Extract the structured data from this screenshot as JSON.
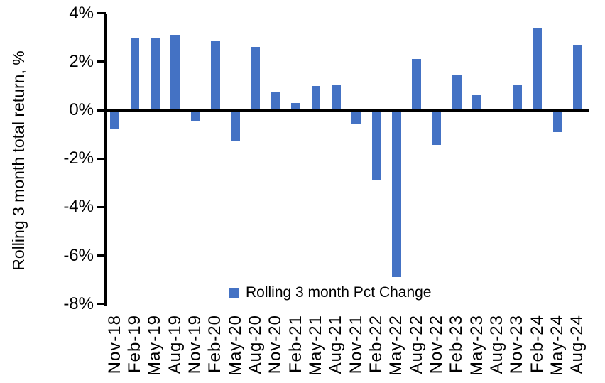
{
  "chart_data": {
    "type": "bar",
    "title": "",
    "xlabel": "",
    "ylabel": "Rolling 3 month total return, %",
    "legend_label": "Rolling 3 month Pct Change",
    "legend_position": "bottom-center",
    "grid": false,
    "bar_color": "#4472C4",
    "axis_color": "#000000",
    "text_color": "#000000",
    "background_color": "#FFFFFF",
    "ylim": [
      -8,
      4
    ],
    "yticks": [
      {
        "value": 4,
        "label": "4%"
      },
      {
        "value": 2,
        "label": "2%"
      },
      {
        "value": 0,
        "label": "0%"
      },
      {
        "value": -2,
        "label": "-2%"
      },
      {
        "value": -4,
        "label": "-4%"
      },
      {
        "value": -6,
        "label": "-6%"
      },
      {
        "value": -8,
        "label": "-8%"
      }
    ],
    "categories": [
      "Nov-18",
      "Feb-19",
      "May-19",
      "Aug-19",
      "Nov-19",
      "Feb-20",
      "May-20",
      "Aug-20",
      "Nov-20",
      "Feb-21",
      "May-21",
      "Aug-21",
      "Nov-21",
      "Feb-22",
      "May-22",
      "Aug-22",
      "Nov-22",
      "Feb-23",
      "May-23",
      "Aug-23",
      "Nov-23",
      "Feb-24",
      "May-24",
      "Aug-24"
    ],
    "values": [
      -0.75,
      2.95,
      3.0,
      3.1,
      -0.45,
      2.85,
      -1.3,
      2.6,
      0.75,
      0.3,
      1.0,
      1.05,
      -0.55,
      -2.9,
      -6.9,
      2.1,
      -1.45,
      1.45,
      0.65,
      0.0,
      1.05,
      3.4,
      -0.9,
      2.7
    ]
  }
}
